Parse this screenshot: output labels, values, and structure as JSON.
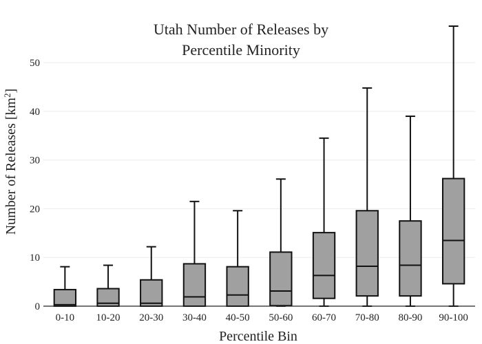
{
  "chart_data": {
    "type": "box",
    "title_line1": "Utah Number of Releases by",
    "title_line2": "Percentile Minority",
    "xlabel": "Percentile Bin",
    "ylabel_main": "Number of Releases  [km",
    "ylabel_sup": "2",
    "ylabel_end": "]",
    "ylim": [
      0,
      57.5
    ],
    "yticks": [
      0,
      10,
      20,
      30,
      40,
      50
    ],
    "grid": true,
    "legend": "none",
    "box_color": "#a0a0a0",
    "line_color": "#111111",
    "categories": [
      "0-10",
      "10-20",
      "20-30",
      "30-40",
      "40-50",
      "50-60",
      "60-70",
      "70-80",
      "80-90",
      "90-100"
    ],
    "boxes": [
      {
        "min": 0,
        "q1": 0,
        "median": 0.3,
        "q3": 3.4,
        "max": 8.1
      },
      {
        "min": 0,
        "q1": 0,
        "median": 0.6,
        "q3": 3.6,
        "max": 8.4
      },
      {
        "min": 0,
        "q1": 0,
        "median": 0.6,
        "q3": 5.4,
        "max": 12.2
      },
      {
        "min": 0,
        "q1": 0,
        "median": 1.9,
        "q3": 8.7,
        "max": 21.5
      },
      {
        "min": 0,
        "q1": 0,
        "median": 2.3,
        "q3": 8.1,
        "max": 19.6
      },
      {
        "min": 0,
        "q1": 0.1,
        "median": 3.1,
        "q3": 11.1,
        "max": 26.1
      },
      {
        "min": 0,
        "q1": 1.6,
        "median": 6.3,
        "q3": 15.1,
        "max": 34.5
      },
      {
        "min": 0,
        "q1": 2.1,
        "median": 8.2,
        "q3": 19.6,
        "max": 44.8
      },
      {
        "min": 0,
        "q1": 2.1,
        "median": 8.4,
        "q3": 17.5,
        "max": 39.0
      },
      {
        "min": 0,
        "q1": 4.6,
        "median": 13.5,
        "q3": 26.2,
        "max": 57.5
      }
    ]
  }
}
